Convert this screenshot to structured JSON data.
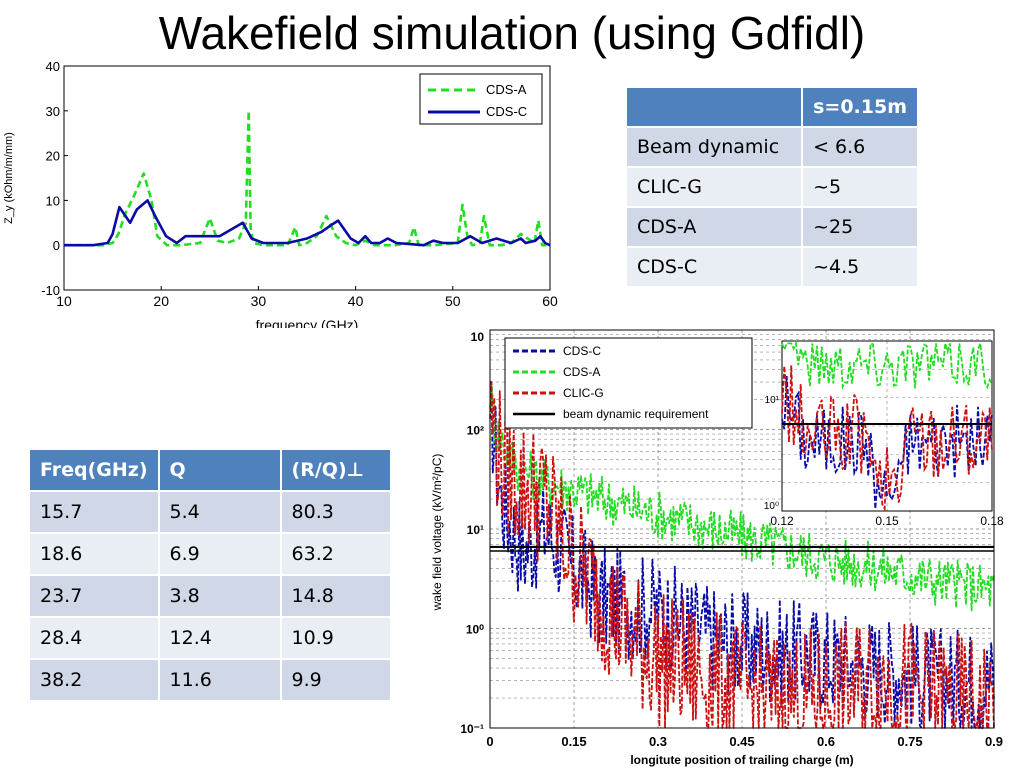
{
  "slide_title": "Wakefield simulation (using Gdfidl)",
  "colors": {
    "green": "#22dd22",
    "blue": "#0a0aa8",
    "red": "#cc1111",
    "black": "#000000",
    "header": "#4f81bd"
  },
  "table_top": {
    "headers": [
      "",
      "s=0.15m"
    ],
    "rows": [
      [
        "Beam dynamic",
        "< 6.6"
      ],
      [
        "CLIC-G",
        "~5"
      ],
      [
        "CDS-A",
        "~25"
      ],
      [
        "CDS-C",
        "~4.5"
      ]
    ]
  },
  "table_modes": {
    "headers": [
      "Freq(GHz)",
      "Q",
      "(R/Q)⊥"
    ],
    "rows": [
      [
        "15.7",
        "5.4",
        "80.3"
      ],
      [
        "18.6",
        "6.9",
        "63.2"
      ],
      [
        "23.7",
        "3.8",
        "14.8"
      ],
      [
        "28.4",
        "12.4",
        "10.9"
      ],
      [
        "38.2",
        "11.6",
        "9.9"
      ]
    ]
  },
  "chart_data": [
    {
      "type": "line",
      "xlabel": "frequency (GHz)",
      "ylabel": "Z_y (kOhm/m/mm)",
      "xlim": [
        10,
        60
      ],
      "ylim": [
        -10,
        40
      ],
      "xticks": [
        "10",
        "20",
        "30",
        "40",
        "50",
        "60"
      ],
      "yticks": [
        "-10",
        "0",
        "10",
        "20",
        "30",
        "40"
      ],
      "legend_position": "top-right",
      "series": [
        {
          "name": "CDS-A",
          "color": "#22dd22",
          "dash": "dashed",
          "x": [
            10,
            14,
            15,
            15.6,
            16.3,
            17.2,
            18.2,
            19,
            19.6,
            20.6,
            22,
            24,
            25,
            25.8,
            26.8,
            28,
            28.7,
            29,
            29.2,
            29.5,
            30.5,
            33,
            33.8,
            34.2,
            35,
            36,
            37,
            38,
            39,
            40,
            41,
            42,
            44,
            45.5,
            46,
            46.5,
            48,
            50.5,
            51,
            51.5,
            52,
            52.8,
            53.2,
            53.8,
            55,
            56,
            57,
            58.4,
            58.8,
            59.2,
            60
          ],
          "y": [
            0,
            0,
            0.5,
            2.5,
            7,
            11,
            16,
            10,
            2,
            0,
            0,
            0.5,
            6,
            1,
            0.5,
            1.5,
            5,
            30,
            4,
            0.5,
            0,
            0,
            4,
            0,
            0.5,
            2,
            6.5,
            2,
            0.5,
            0,
            1,
            0,
            0,
            0.5,
            4,
            0,
            0,
            0.5,
            9,
            2,
            0,
            0.5,
            6.5,
            0,
            0,
            0.5,
            2.5,
            0.5,
            5.5,
            0,
            0
          ]
        },
        {
          "name": "CDS-C",
          "color": "#0a0aa8",
          "dash": "solid",
          "x": [
            10,
            13,
            14.5,
            15,
            15.7,
            16.8,
            17.5,
            18.6,
            19.5,
            20.5,
            21.6,
            22.5,
            24,
            26,
            28.4,
            29.3,
            30.5,
            33,
            35,
            36.5,
            37.5,
            38.2,
            39.5,
            40.3,
            41,
            41.6,
            42.5,
            43.3,
            44.2,
            47,
            48,
            49,
            50.5,
            51.8,
            53,
            54.5,
            56,
            57,
            57.5,
            58.5,
            59,
            59.5,
            60
          ],
          "y": [
            0,
            0,
            0.5,
            2.5,
            8.5,
            5,
            8,
            10,
            6,
            2,
            0.5,
            2,
            2,
            2,
            5,
            1.5,
            0.5,
            0.5,
            1.5,
            3,
            4.5,
            5.5,
            1.5,
            0.5,
            2,
            0.5,
            0.5,
            1.5,
            0.5,
            0,
            1,
            0.5,
            0.5,
            2,
            0.5,
            1.5,
            0.5,
            1.5,
            0.5,
            1,
            2,
            0.5,
            0
          ]
        }
      ]
    },
    {
      "type": "line",
      "xlabel": "longitute position of trailing charge (m)",
      "ylabel": "wake field voltage (kV/m²/pC)",
      "xlim": [
        0,
        0.9
      ],
      "yscale": "log",
      "ylim": [
        0.1,
        1000
      ],
      "xticks": [
        "0",
        "0.15",
        "0.3",
        "0.45",
        "0.6",
        "0.75",
        "0.9"
      ],
      "yticks": [
        "10⁻¹",
        "10⁰",
        "10¹",
        "10²",
        "10"
      ],
      "grid": true,
      "legend_position": "top-left",
      "inset": {
        "xlim": [
          0.12,
          0.18
        ],
        "xticks": [
          "0.12",
          "0.15",
          "0.18"
        ],
        "yticks": [
          "10¹",
          "10⁰"
        ]
      },
      "series": [
        {
          "name": "CDS-C",
          "color": "#0a0aa8",
          "dash": "dashed",
          "x": [
            0,
            0.01,
            0.02,
            0.04,
            0.06,
            0.08,
            0.1,
            0.15,
            0.2,
            0.3,
            0.4,
            0.5,
            0.6,
            0.7,
            0.8,
            0.9
          ],
          "y": [
            200,
            60,
            20,
            10,
            6,
            8,
            10,
            4,
            2,
            1.5,
            0.8,
            0.6,
            0.5,
            0.4,
            0.3,
            0.3
          ]
        },
        {
          "name": "CDS-A",
          "color": "#22dd22",
          "dash": "dashed",
          "x": [
            0,
            0.01,
            0.05,
            0.1,
            0.15,
            0.2,
            0.3,
            0.4,
            0.5,
            0.6,
            0.7,
            0.8,
            0.9
          ],
          "y": [
            250,
            100,
            40,
            30,
            25,
            20,
            14,
            10,
            7,
            5,
            4,
            3,
            2.5
          ]
        },
        {
          "name": "CLIC-G",
          "color": "#cc1111",
          "dash": "dashed",
          "x": [
            0,
            0.01,
            0.02,
            0.05,
            0.1,
            0.13,
            0.15,
            0.2,
            0.25,
            0.3,
            0.4,
            0.5,
            0.6,
            0.7,
            0.8,
            0.9
          ],
          "y": [
            200,
            80,
            50,
            30,
            20,
            8,
            5,
            2,
            0.8,
            0.5,
            0.3,
            0.2,
            0.2,
            0.3,
            0.2,
            0.15
          ]
        },
        {
          "name": "beam dynamic requirement",
          "color": "#000000",
          "dash": "solid",
          "x": [
            0,
            0.9
          ],
          "y": [
            6.6,
            6.6
          ]
        }
      ]
    }
  ]
}
